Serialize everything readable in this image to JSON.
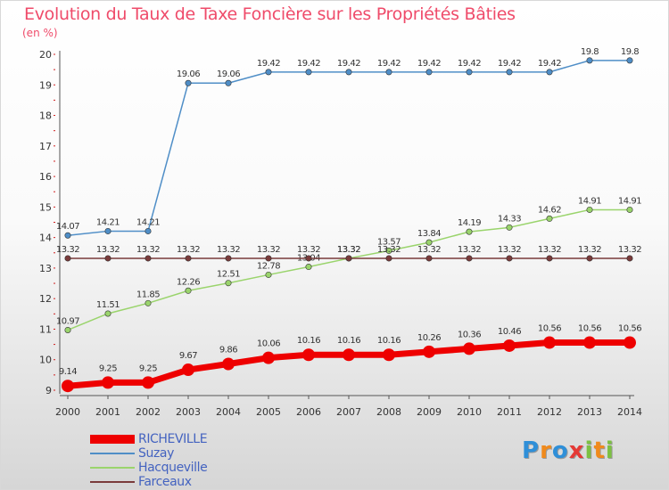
{
  "chart_data": {
    "type": "line",
    "title": "Evolution du Taux de Taxe Foncière sur les Propriétés Bâties",
    "ylabel": "(en %)",
    "xlabel": "",
    "x": [
      "2000",
      "2001",
      "2002",
      "2003",
      "2004",
      "2005",
      "2006",
      "2007",
      "2008",
      "2009",
      "2010",
      "2011",
      "2012",
      "2013",
      "2014"
    ],
    "ylim": [
      9,
      20
    ],
    "yticks": [
      "9",
      "10",
      "11",
      "12",
      "13",
      "14",
      "15",
      "16",
      "17",
      "18",
      "19",
      "20"
    ],
    "grid": false,
    "legend_position": "bottom-left",
    "series": [
      {
        "name": "RICHEVILLE",
        "color": "#ee0000",
        "values": [
          9.14,
          9.25,
          9.25,
          9.67,
          9.86,
          10.06,
          10.16,
          10.16,
          10.16,
          10.26,
          10.36,
          10.46,
          10.56,
          10.56,
          10.56
        ],
        "labels": [
          "9.14",
          "9.25",
          "9.25",
          "9.67",
          "9.86",
          "10.06",
          "10.16",
          "10.16",
          "10.16",
          "10.26",
          "10.36",
          "10.46",
          "10.56",
          "10.56",
          "10.56"
        ]
      },
      {
        "name": "Suzay",
        "color": "#4f8ec7",
        "values": [
          14.07,
          14.21,
          14.21,
          19.06,
          19.06,
          19.42,
          19.42,
          19.42,
          19.42,
          19.42,
          19.42,
          19.42,
          19.42,
          19.8,
          19.8
        ],
        "labels": [
          "14.07",
          "14.21",
          "14.21",
          "19.06",
          "19.06",
          "19.42",
          "19.42",
          "19.42",
          "19.42",
          "19.42",
          "19.42",
          "19.42",
          "19.42",
          "19.8",
          "19.8"
        ]
      },
      {
        "name": "Hacqueville",
        "color": "#9ad46c",
        "values": [
          10.97,
          11.51,
          11.85,
          12.26,
          12.51,
          12.78,
          13.04,
          13.32,
          13.57,
          13.84,
          14.19,
          14.33,
          14.62,
          14.91,
          14.91
        ],
        "labels": [
          "10.97",
          "11.51",
          "11.85",
          "12.26",
          "12.51",
          "12.78",
          "13.04",
          "13.32",
          "13.57",
          "13.84",
          "14.19",
          "14.33",
          "14.62",
          "14.91",
          "14.91"
        ]
      },
      {
        "name": "Farceaux",
        "color": "#7a3b3b",
        "values": [
          13.32,
          13.32,
          13.32,
          13.32,
          13.32,
          13.32,
          13.32,
          13.32,
          13.32,
          13.32,
          13.32,
          13.32,
          13.32,
          13.32,
          13.32
        ],
        "labels": [
          "13.32",
          "13.32",
          "13.32",
          "13.32",
          "13.32",
          "13.32",
          "13.32",
          "13.32",
          "13.32",
          "13.32",
          "13.32",
          "13.32",
          "13.32",
          "13.32",
          "13.32"
        ]
      }
    ]
  },
  "logo": {
    "letters": [
      "P",
      "r",
      "o",
      "x",
      "i",
      "t",
      "i"
    ],
    "colors": [
      "#2f8fd8",
      "#f08a1c",
      "#2f8fd8",
      "#e53935",
      "#7cc043",
      "#f08a1c",
      "#7cc043"
    ]
  }
}
